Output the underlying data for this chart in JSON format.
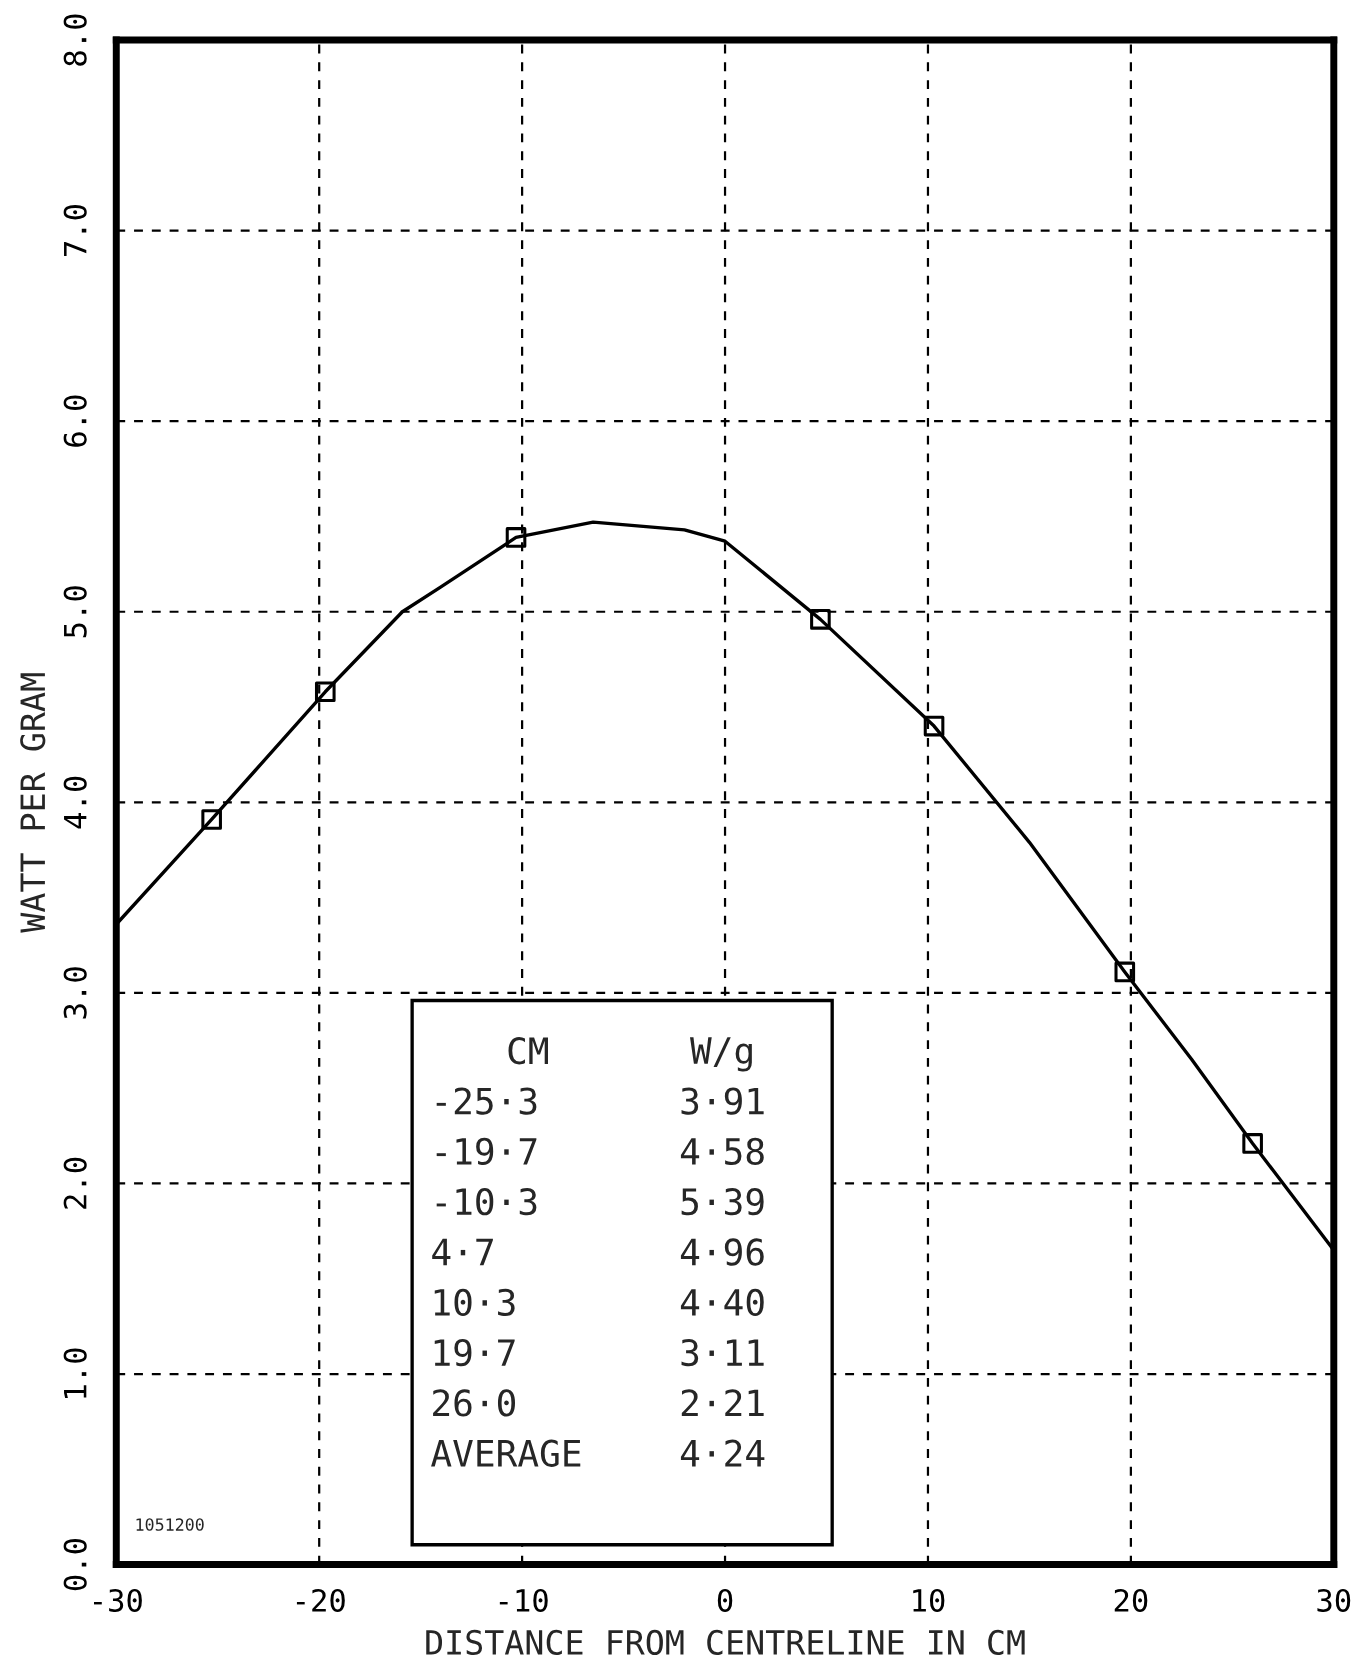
{
  "chart_data": {
    "type": "line",
    "xlabel": "DISTANCE FROM CENTRELINE IN CM",
    "ylabel": "WATT PER GRAM",
    "xlim": [
      -30,
      30
    ],
    "xticks": [
      -30,
      -20,
      -10,
      0,
      10,
      20,
      30
    ],
    "ylim": [
      0,
      8
    ],
    "yticks": [
      {
        "value": 0,
        "label": "0.0"
      },
      {
        "value": 1,
        "label": "1.0"
      },
      {
        "value": 2,
        "label": "2.0"
      },
      {
        "value": 3,
        "label": "3.0"
      },
      {
        "value": 4,
        "label": "4.0"
      },
      {
        "value": 5,
        "label": "5.0"
      },
      {
        "value": 6,
        "label": "6.0"
      },
      {
        "value": 7,
        "label": "7.0"
      },
      {
        "value": 8,
        "label": "8.0"
      }
    ],
    "grid": true,
    "series": [
      {
        "type": "scatter",
        "color": "#000000",
        "marker": "square",
        "x": [
          -25.3,
          -19.7,
          -10.3,
          4.7,
          10.3,
          19.7,
          26.0
        ],
        "values": [
          3.91,
          4.58,
          5.39,
          4.96,
          4.4,
          3.11,
          2.21
        ]
      },
      {
        "color": "#000000",
        "marker": "none",
        "line_style": "solid",
        "x": [
          -30,
          -25.3,
          -19.7,
          -15.9,
          -14,
          -10.3,
          -6.5,
          -2,
          0,
          4.7,
          10.3,
          15,
          19.7,
          23,
          26,
          30
        ],
        "values": [
          3.36,
          3.91,
          4.58,
          5.0,
          5.13,
          5.39,
          5.47,
          5.43,
          5.37,
          4.96,
          4.4,
          3.79,
          3.11,
          2.65,
          2.21,
          1.65
        ]
      }
    ],
    "annotations": [
      "CM",
      "W/g",
      "-25·3",
      "3·91",
      "-19·7",
      "4·58",
      "-10·3",
      "5·39",
      "4·7",
      "4·96",
      "10·3",
      "4·40",
      "19·7",
      "3·11",
      "26·0",
      "2·21",
      "AVERAGE",
      "4·24",
      "1051200"
    ]
  }
}
